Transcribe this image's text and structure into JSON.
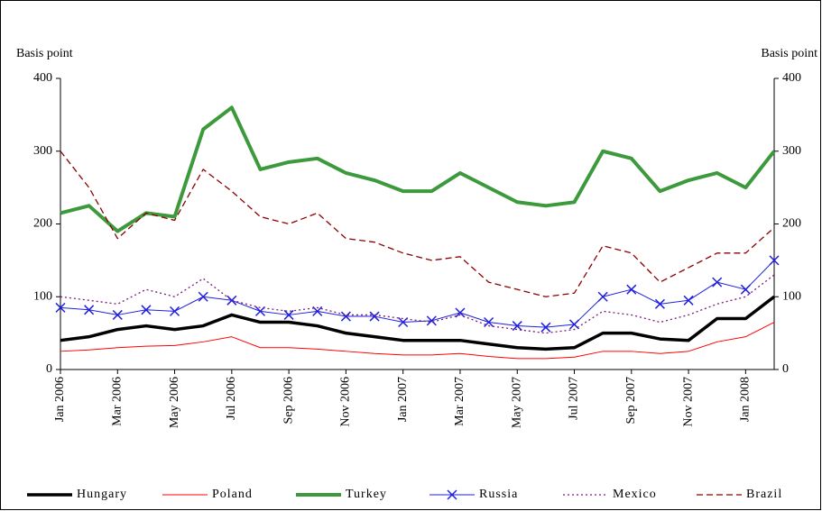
{
  "chart_data": {
    "type": "line",
    "y_label": "Basis point",
    "y2_label": "Basis point",
    "categories": [
      "Jan 2006",
      null,
      "Mar 2006",
      null,
      "May 2006",
      null,
      "Jul 2006",
      null,
      "Sep 2006",
      null,
      "Nov 2006",
      null,
      "Jan 2007",
      null,
      "Mar 2007",
      null,
      "May 2007",
      null,
      "Jul 2007",
      null,
      "Sep 2007",
      null,
      "Nov 2007",
      null,
      "Jan 2008",
      null
    ],
    "series": [
      {
        "name": "Hungary",
        "color": "#000000",
        "style": "solid",
        "width": 3.5,
        "values": [
          40,
          45,
          55,
          60,
          55,
          60,
          75,
          65,
          65,
          60,
          50,
          45,
          40,
          40,
          40,
          35,
          30,
          28,
          30,
          50,
          50,
          42,
          40,
          70,
          70,
          100
        ]
      },
      {
        "name": "Poland",
        "color": "#ff0000",
        "style": "solid",
        "width": 1,
        "values": [
          25,
          27,
          30,
          32,
          33,
          38,
          45,
          30,
          30,
          28,
          25,
          22,
          20,
          20,
          22,
          18,
          15,
          15,
          17,
          25,
          25,
          22,
          25,
          38,
          45,
          65
        ]
      },
      {
        "name": "Turkey",
        "color": "#3c9a3c",
        "style": "solid",
        "width": 4,
        "values": [
          215,
          225,
          190,
          215,
          210,
          330,
          360,
          275,
          285,
          290,
          270,
          260,
          245,
          245,
          270,
          250,
          230,
          225,
          230,
          300,
          290,
          245,
          260,
          270,
          250,
          300
        ]
      },
      {
        "name": "Russia",
        "color": "#1f1fdd",
        "style": "solid",
        "width": 1,
        "marker": "x",
        "values": [
          85,
          82,
          75,
          82,
          80,
          100,
          95,
          80,
          75,
          80,
          73,
          73,
          65,
          67,
          78,
          65,
          60,
          58,
          62,
          100,
          110,
          90,
          95,
          120,
          110,
          150
        ]
      },
      {
        "name": "Mexico",
        "color": "#7a1a7a",
        "style": "dotted",
        "width": 1.3,
        "values": [
          100,
          95,
          90,
          110,
          100,
          125,
          95,
          85,
          80,
          85,
          75,
          75,
          70,
          65,
          75,
          60,
          55,
          50,
          55,
          80,
          75,
          65,
          75,
          90,
          100,
          130
        ]
      },
      {
        "name": "Brazil",
        "color": "#8b0000",
        "style": "dashed",
        "width": 1.3,
        "values": [
          300,
          250,
          180,
          215,
          205,
          275,
          245,
          210,
          200,
          215,
          180,
          175,
          160,
          150,
          155,
          120,
          110,
          100,
          105,
          170,
          160,
          120,
          140,
          160,
          160,
          195
        ]
      }
    ],
    "ylim": [
      0,
      400
    ],
    "yticks": [
      0,
      100,
      200,
      300,
      400
    ],
    "y2lim": [
      0,
      400
    ],
    "y2ticks": [
      0,
      100,
      200,
      300,
      400
    ],
    "legend": "bottom"
  }
}
